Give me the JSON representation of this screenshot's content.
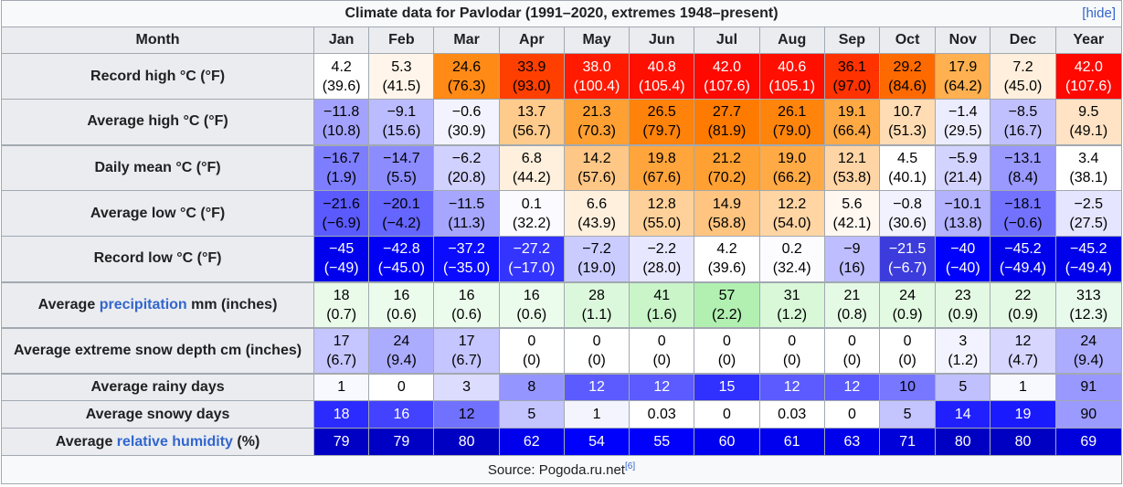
{
  "title": "Climate data for Pavlodar (1991–2020, extremes 1948–present)",
  "hide_label": "[hide]",
  "header": {
    "month_label": "Month",
    "months": [
      "Jan",
      "Feb",
      "Mar",
      "Apr",
      "May",
      "Jun",
      "Jul",
      "Aug",
      "Sep",
      "Oct",
      "Nov",
      "Dec"
    ],
    "year_label": "Year"
  },
  "rows": [
    {
      "label": "Record high °C (°F)",
      "h": 50,
      "cells": [
        {
          "v": "4.2",
          "s": "(39.6)",
          "bg": "#ffffff",
          "fg": "#000000"
        },
        {
          "v": "5.3",
          "s": "(41.5)",
          "bg": "#fff5ea",
          "fg": "#000000"
        },
        {
          "v": "24.6",
          "s": "(76.3)",
          "bg": "#ff8a16",
          "fg": "#000000"
        },
        {
          "v": "33.9",
          "s": "(93.0)",
          "bg": "#ff3f00",
          "fg": "#000000"
        },
        {
          "v": "38.0",
          "s": "(100.4)",
          "bg": "#ff1a00",
          "fg": "#ffffff"
        },
        {
          "v": "40.8",
          "s": "(105.4)",
          "bg": "#ff0f00",
          "fg": "#ffffff"
        },
        {
          "v": "42.0",
          "s": "(107.6)",
          "bg": "#ff0800",
          "fg": "#ffffff"
        },
        {
          "v": "40.6",
          "s": "(105.1)",
          "bg": "#ff0f00",
          "fg": "#ffffff"
        },
        {
          "v": "36.1",
          "s": "(97.0)",
          "bg": "#ff3200",
          "fg": "#000000"
        },
        {
          "v": "29.2",
          "s": "(84.6)",
          "bg": "#ff6a00",
          "fg": "#000000"
        },
        {
          "v": "17.9",
          "s": "(64.2)",
          "bg": "#ffb050",
          "fg": "#000000"
        },
        {
          "v": "7.2",
          "s": "(45.0)",
          "bg": "#ffefdc",
          "fg": "#000000"
        },
        {
          "v": "42.0",
          "s": "(107.6)",
          "bg": "#ff0800",
          "fg": "#ffffff"
        }
      ]
    },
    {
      "label": "Average high °C (°F)",
      "h": 50,
      "cells": [
        {
          "v": "−11.8",
          "s": "(10.8)",
          "bg": "#a3a3ff",
          "fg": "#000000"
        },
        {
          "v": "−9.1",
          "s": "(15.6)",
          "bg": "#bbbbff",
          "fg": "#000000"
        },
        {
          "v": "−0.6",
          "s": "(30.9)",
          "bg": "#f3f3ff",
          "fg": "#000000"
        },
        {
          "v": "13.7",
          "s": "(56.7)",
          "bg": "#ffcb8c",
          "fg": "#000000"
        },
        {
          "v": "21.3",
          "s": "(70.3)",
          "bg": "#ffa033",
          "fg": "#000000"
        },
        {
          "v": "26.5",
          "s": "(79.7)",
          "bg": "#ff820a",
          "fg": "#000000"
        },
        {
          "v": "27.7",
          "s": "(81.9)",
          "bg": "#ff7b00",
          "fg": "#000000"
        },
        {
          "v": "26.1",
          "s": "(79.0)",
          "bg": "#ff840c",
          "fg": "#000000"
        },
        {
          "v": "19.1",
          "s": "(66.4)",
          "bg": "#ffa944",
          "fg": "#000000"
        },
        {
          "v": "10.7",
          "s": "(51.3)",
          "bg": "#ffdcb3",
          "fg": "#000000"
        },
        {
          "v": "−1.4",
          "s": "(29.5)",
          "bg": "#ececff",
          "fg": "#000000"
        },
        {
          "v": "−8.5",
          "s": "(16.7)",
          "bg": "#c0c0ff",
          "fg": "#000000"
        },
        {
          "v": "9.5",
          "s": "(49.1)",
          "bg": "#ffe3c4",
          "fg": "#000000"
        }
      ]
    },
    {
      "label": "Daily mean °C (°F)",
      "h": 50,
      "thick": true,
      "cells": [
        {
          "v": "−16.7",
          "s": "(1.9)",
          "bg": "#7d7dff",
          "fg": "#000000"
        },
        {
          "v": "−14.7",
          "s": "(5.5)",
          "bg": "#8c8cff",
          "fg": "#000000"
        },
        {
          "v": "−6.2",
          "s": "(20.8)",
          "bg": "#d1d1ff",
          "fg": "#000000"
        },
        {
          "v": "6.8",
          "s": "(44.2)",
          "bg": "#fff0dd",
          "fg": "#000000"
        },
        {
          "v": "14.2",
          "s": "(57.6)",
          "bg": "#ffc786",
          "fg": "#000000"
        },
        {
          "v": "19.8",
          "s": "(67.6)",
          "bg": "#ffa53c",
          "fg": "#000000"
        },
        {
          "v": "21.2",
          "s": "(70.2)",
          "bg": "#ffa033",
          "fg": "#000000"
        },
        {
          "v": "19.0",
          "s": "(66.2)",
          "bg": "#ffaa45",
          "fg": "#000000"
        },
        {
          "v": "12.1",
          "s": "(53.8)",
          "bg": "#ffd5a6",
          "fg": "#000000"
        },
        {
          "v": "4.5",
          "s": "(40.1)",
          "bg": "#ffffff",
          "fg": "#000000"
        },
        {
          "v": "−5.9",
          "s": "(21.4)",
          "bg": "#d3d3ff",
          "fg": "#000000"
        },
        {
          "v": "−13.1",
          "s": "(8.4)",
          "bg": "#9999ff",
          "fg": "#000000"
        },
        {
          "v": "3.4",
          "s": "(38.1)",
          "bg": "#ffffff",
          "fg": "#000000"
        }
      ]
    },
    {
      "label": "Average low °C (°F)",
      "h": 50,
      "cells": [
        {
          "v": "−21.6",
          "s": "(−6.9)",
          "bg": "#5a5aff",
          "fg": "#000000"
        },
        {
          "v": "−20.1",
          "s": "(−4.2)",
          "bg": "#6565ff",
          "fg": "#000000"
        },
        {
          "v": "−11.5",
          "s": "(11.3)",
          "bg": "#a6a6ff",
          "fg": "#000000"
        },
        {
          "v": "0.1",
          "s": "(32.2)",
          "bg": "#fafaff",
          "fg": "#000000"
        },
        {
          "v": "6.6",
          "s": "(43.9)",
          "bg": "#fff0de",
          "fg": "#000000"
        },
        {
          "v": "12.8",
          "s": "(55.0)",
          "bg": "#ffd19a",
          "fg": "#000000"
        },
        {
          "v": "14.9",
          "s": "(58.8)",
          "bg": "#ffc47f",
          "fg": "#000000"
        },
        {
          "v": "12.2",
          "s": "(54.0)",
          "bg": "#ffd5a4",
          "fg": "#000000"
        },
        {
          "v": "5.6",
          "s": "(42.1)",
          "bg": "#fff8f0",
          "fg": "#000000"
        },
        {
          "v": "−0.8",
          "s": "(30.6)",
          "bg": "#f2f2ff",
          "fg": "#000000"
        },
        {
          "v": "−10.1",
          "s": "(13.8)",
          "bg": "#b2b2ff",
          "fg": "#000000"
        },
        {
          "v": "−18.1",
          "s": "(−0.6)",
          "bg": "#7272ff",
          "fg": "#000000"
        },
        {
          "v": "−2.5",
          "s": "(27.5)",
          "bg": "#e5e5ff",
          "fg": "#000000"
        }
      ]
    },
    {
      "label": "Record low °C (°F)",
      "h": 50,
      "cells": [
        {
          "v": "−45",
          "s": "(−49)",
          "bg": "#0000ec",
          "fg": "#ffffff"
        },
        {
          "v": "−42.8",
          "s": "(−45.0)",
          "bg": "#0000f4",
          "fg": "#ffffff"
        },
        {
          "v": "−37.2",
          "s": "(−35.0)",
          "bg": "#0b0bff",
          "fg": "#ffffff"
        },
        {
          "v": "−27.2",
          "s": "(−17.0)",
          "bg": "#3434ff",
          "fg": "#ffffff"
        },
        {
          "v": "−7.2",
          "s": "(19.0)",
          "bg": "#caccff",
          "fg": "#000000"
        },
        {
          "v": "−2.2",
          "s": "(28.0)",
          "bg": "#e7e7ff",
          "fg": "#000000"
        },
        {
          "v": "4.2",
          "s": "(39.6)",
          "bg": "#ffffff",
          "fg": "#000000"
        },
        {
          "v": "0.2",
          "s": "(32.4)",
          "bg": "#fcfcff",
          "fg": "#000000"
        },
        {
          "v": "−9",
          "s": "(16)",
          "bg": "#bdbdff",
          "fg": "#000000"
        },
        {
          "v": "−21.5",
          "s": "(−6.7)",
          "bg": "#3c3cdd",
          "fg": "#ffffff"
        },
        {
          "v": "−40",
          "s": "(−40)",
          "bg": "#0000ff",
          "fg": "#ffffff"
        },
        {
          "v": "−45.2",
          "s": "(−49.4)",
          "bg": "#0000ea",
          "fg": "#ffffff"
        },
        {
          "v": "−45.2",
          "s": "(−49.4)",
          "bg": "#0000ea",
          "fg": "#ffffff"
        }
      ]
    },
    {
      "label": "Average",
      "label_link": "precipitation",
      "label_tail": "mm (inches)",
      "h": 50,
      "thick": true,
      "cells": [
        {
          "v": "18",
          "s": "(0.7)",
          "bg": "#eafbea",
          "fg": "#000000"
        },
        {
          "v": "16",
          "s": "(0.6)",
          "bg": "#ecfcec",
          "fg": "#000000"
        },
        {
          "v": "16",
          "s": "(0.6)",
          "bg": "#ecfcec",
          "fg": "#000000"
        },
        {
          "v": "16",
          "s": "(0.6)",
          "bg": "#ecfcec",
          "fg": "#000000"
        },
        {
          "v": "28",
          "s": "(1.1)",
          "bg": "#dcf8dc",
          "fg": "#000000"
        },
        {
          "v": "41",
          "s": "(1.6)",
          "bg": "#c9f5c9",
          "fg": "#000000"
        },
        {
          "v": "57",
          "s": "(2.2)",
          "bg": "#b1f0b1",
          "fg": "#000000"
        },
        {
          "v": "31",
          "s": "(1.2)",
          "bg": "#d8f8d8",
          "fg": "#000000"
        },
        {
          "v": "21",
          "s": "(0.8)",
          "bg": "#e5fae5",
          "fg": "#000000"
        },
        {
          "v": "24",
          "s": "(0.9)",
          "bg": "#e2f9e2",
          "fg": "#000000"
        },
        {
          "v": "23",
          "s": "(0.9)",
          "bg": "#e3f9e3",
          "fg": "#000000"
        },
        {
          "v": "22",
          "s": "(0.9)",
          "bg": "#e4f9e4",
          "fg": "#000000"
        },
        {
          "v": "313",
          "s": "(12.3)",
          "bg": "#e8faeb",
          "fg": "#000000"
        }
      ]
    },
    {
      "label": "Average extreme snow depth cm (inches)",
      "h": 50,
      "thick": true,
      "cells": [
        {
          "v": "17",
          "s": "(6.7)",
          "bg": "#c5c5ff",
          "fg": "#000000"
        },
        {
          "v": "24",
          "s": "(9.4)",
          "bg": "#acacff",
          "fg": "#000000"
        },
        {
          "v": "17",
          "s": "(6.7)",
          "bg": "#c5c5ff",
          "fg": "#000000"
        },
        {
          "v": "0",
          "s": "(0)",
          "bg": "#ffffff",
          "fg": "#000000"
        },
        {
          "v": "0",
          "s": "(0)",
          "bg": "#ffffff",
          "fg": "#000000"
        },
        {
          "v": "0",
          "s": "(0)",
          "bg": "#ffffff",
          "fg": "#000000"
        },
        {
          "v": "0",
          "s": "(0)",
          "bg": "#ffffff",
          "fg": "#000000"
        },
        {
          "v": "0",
          "s": "(0)",
          "bg": "#ffffff",
          "fg": "#000000"
        },
        {
          "v": "0",
          "s": "(0)",
          "bg": "#ffffff",
          "fg": "#000000"
        },
        {
          "v": "0",
          "s": "(0)",
          "bg": "#ffffff",
          "fg": "#000000"
        },
        {
          "v": "3",
          "s": "(1.2)",
          "bg": "#f3f3ff",
          "fg": "#000000"
        },
        {
          "v": "12",
          "s": "(4.7)",
          "bg": "#d6d6ff",
          "fg": "#000000"
        },
        {
          "v": "24",
          "s": "(9.4)",
          "bg": "#acacff",
          "fg": "#000000"
        }
      ]
    },
    {
      "label": "Average rainy days",
      "h": 30,
      "thick": true,
      "cells": [
        {
          "v": "1",
          "bg": "#f8f8ff",
          "fg": "#000000"
        },
        {
          "v": "0",
          "bg": "#ffffff",
          "fg": "#000000"
        },
        {
          "v": "3",
          "bg": "#dcdcff",
          "fg": "#000000"
        },
        {
          "v": "8",
          "bg": "#9595ff",
          "fg": "#000000"
        },
        {
          "v": "12",
          "bg": "#5b5bff",
          "fg": "#ffffff"
        },
        {
          "v": "12",
          "bg": "#5b5bff",
          "fg": "#ffffff"
        },
        {
          "v": "15",
          "bg": "#3030ff",
          "fg": "#ffffff"
        },
        {
          "v": "12",
          "bg": "#5b5bff",
          "fg": "#ffffff"
        },
        {
          "v": "12",
          "bg": "#5b5bff",
          "fg": "#ffffff"
        },
        {
          "v": "10",
          "bg": "#7777ff",
          "fg": "#000000"
        },
        {
          "v": "5",
          "bg": "#c0c0ff",
          "fg": "#000000"
        },
        {
          "v": "1",
          "bg": "#f8f8ff",
          "fg": "#000000"
        },
        {
          "v": "91",
          "bg": "#9898ff",
          "fg": "#000000"
        }
      ]
    },
    {
      "label": "Average snowy days",
      "h": 30,
      "cells": [
        {
          "v": "18",
          "bg": "#2b2bff",
          "fg": "#ffffff"
        },
        {
          "v": "16",
          "bg": "#4242ff",
          "fg": "#ffffff"
        },
        {
          "v": "12",
          "bg": "#7171ff",
          "fg": "#000000"
        },
        {
          "v": "5",
          "bg": "#c4c4ff",
          "fg": "#000000"
        },
        {
          "v": "1",
          "bg": "#f4f4ff",
          "fg": "#000000"
        },
        {
          "v": "0.03",
          "bg": "#ffffff",
          "fg": "#000000"
        },
        {
          "v": "0",
          "bg": "#ffffff",
          "fg": "#000000"
        },
        {
          "v": "0.03",
          "bg": "#ffffff",
          "fg": "#000000"
        },
        {
          "v": "0",
          "bg": "#ffffff",
          "fg": "#000000"
        },
        {
          "v": "5",
          "bg": "#c4c4ff",
          "fg": "#000000"
        },
        {
          "v": "14",
          "bg": "#2020ff",
          "fg": "#ffffff"
        },
        {
          "v": "19",
          "bg": "#1a1aff",
          "fg": "#ffffff"
        },
        {
          "v": "90",
          "bg": "#9b9bff",
          "fg": "#000000"
        }
      ]
    },
    {
      "label": "Average",
      "label_link": "relative humidity",
      "label_tail": "(%)",
      "h": 30,
      "cells": [
        {
          "v": "79",
          "bg": "#0000c5",
          "fg": "#ffffff"
        },
        {
          "v": "79",
          "bg": "#0000c5",
          "fg": "#ffffff"
        },
        {
          "v": "80",
          "bg": "#0000c2",
          "fg": "#ffffff"
        },
        {
          "v": "62",
          "bg": "#0000ec",
          "fg": "#ffffff"
        },
        {
          "v": "54",
          "bg": "#0000fd",
          "fg": "#ffffff"
        },
        {
          "v": "55",
          "bg": "#0000fb",
          "fg": "#ffffff"
        },
        {
          "v": "60",
          "bg": "#0000f0",
          "fg": "#ffffff"
        },
        {
          "v": "61",
          "bg": "#0000ee",
          "fg": "#ffffff"
        },
        {
          "v": "63",
          "bg": "#0000ea",
          "fg": "#ffffff"
        },
        {
          "v": "71",
          "bg": "#0000d8",
          "fg": "#ffffff"
        },
        {
          "v": "80",
          "bg": "#0000c2",
          "fg": "#ffffff"
        },
        {
          "v": "80",
          "bg": "#0000c2",
          "fg": "#ffffff"
        },
        {
          "v": "69",
          "bg": "#0000dc",
          "fg": "#ffffff"
        }
      ]
    }
  ],
  "source": {
    "text": "Source: Pogoda.ru.net",
    "ref": "[6]"
  }
}
